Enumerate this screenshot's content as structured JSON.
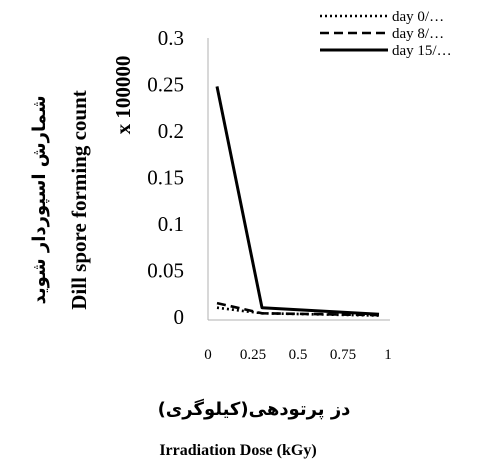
{
  "chart_data": {
    "type": "line",
    "x": [
      0.05,
      0.3,
      0.95
    ],
    "series": [
      {
        "name": "day 0/…",
        "values": [
          0.01,
          0.004,
          0.0015
        ],
        "style": "dotted"
      },
      {
        "name": "day 8/…",
        "values": [
          0.015,
          0.004,
          0.002
        ],
        "style": "dashed"
      },
      {
        "name": "day 15/…",
        "values": [
          0.248,
          0.01,
          0.003
        ],
        "style": "solid"
      }
    ],
    "x_ticks": [
      "0",
      "0.25",
      "0.5",
      "0.75",
      "1"
    ],
    "y_ticks": [
      "0",
      "0.05",
      "0.1",
      "0.15",
      "0.2",
      "0.25",
      "0.3"
    ],
    "xlim": [
      0,
      1
    ],
    "ylim": [
      0,
      0.3
    ],
    "xlabel_fa": "دز پرتودهی(کیلوگری)",
    "xlabel": "Irradiation Dose (kGy)",
    "ylabel_fa": "شمارش اسپوردار شوید",
    "ylabel": "Dill spore forming count",
    "ylabel_unit": "x 100000",
    "legend_position": "top-right",
    "grid": false,
    "line_color": "#000000"
  }
}
